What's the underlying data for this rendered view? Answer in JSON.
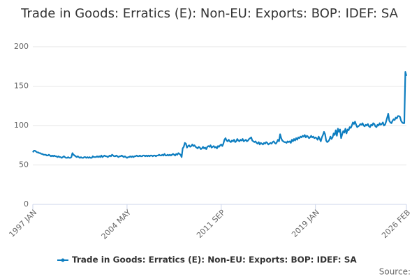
{
  "chart_data": {
    "type": "line",
    "title": "Trade in Goods: Erratics (E): Non-EU: Exports: BOP: IDEF: SA",
    "source": "Source:",
    "categories": [
      "1997 JAN",
      null,
      null,
      null,
      null,
      null,
      null,
      null,
      null,
      null,
      null,
      null,
      null,
      null,
      null,
      null,
      null,
      null,
      null,
      null,
      null,
      null,
      null,
      null,
      null,
      null,
      null,
      null,
      null,
      null,
      null,
      null,
      null,
      null,
      null,
      null,
      null,
      null,
      null,
      null,
      null,
      null,
      null,
      null,
      null,
      null,
      null,
      null,
      null,
      null,
      null,
      null,
      null,
      null,
      null,
      null,
      null,
      null,
      null,
      null,
      null,
      null,
      null,
      null,
      null,
      null,
      null,
      null,
      null,
      null,
      null,
      null,
      null,
      null,
      null,
      null,
      null,
      null,
      null,
      null,
      null,
      null,
      null,
      null,
      null,
      null,
      null,
      null,
      "2004 MAY",
      null,
      null,
      null,
      null,
      null,
      null,
      null,
      null,
      null,
      null,
      null,
      null,
      null,
      null,
      null,
      null,
      null,
      null,
      null,
      null,
      null,
      null,
      null,
      null,
      null,
      null,
      null,
      null,
      null,
      null,
      null,
      null,
      null,
      null,
      null,
      null,
      null,
      null,
      null,
      null,
      null,
      null,
      null,
      null,
      null,
      null,
      null,
      null,
      null,
      null,
      null,
      null,
      null,
      null,
      null,
      null,
      null,
      null,
      null,
      null,
      null,
      null,
      null,
      null,
      null,
      null,
      null,
      null,
      null,
      null,
      null,
      null,
      null,
      null,
      null,
      null,
      null,
      null,
      null,
      null,
      null,
      null,
      null,
      null,
      null,
      null,
      null,
      "2011 SEP",
      null,
      null,
      null,
      null,
      null,
      null,
      null,
      null,
      null,
      null,
      null,
      null,
      null,
      null,
      null,
      null,
      null,
      null,
      null,
      null,
      null,
      null,
      null,
      null,
      null,
      null,
      null,
      null,
      null,
      null,
      null,
      null,
      null,
      null,
      null,
      null,
      null,
      null,
      null,
      null,
      null,
      null,
      null,
      null,
      null,
      null,
      null,
      null,
      null,
      null,
      null,
      null,
      null,
      null,
      null,
      null,
      null,
      null,
      null,
      null,
      null,
      null,
      null,
      null,
      null,
      null,
      null,
      null,
      null,
      null,
      null,
      null,
      null,
      null,
      null,
      null,
      null,
      null,
      null,
      null,
      null,
      null,
      null,
      null,
      null,
      null,
      null,
      "2019 JAN",
      null,
      null,
      null,
      null,
      null,
      null,
      null,
      null,
      null,
      null,
      null,
      null,
      null,
      null,
      null,
      null,
      null,
      null,
      null,
      null,
      null,
      null,
      null,
      null,
      null,
      null,
      null,
      null,
      null,
      null,
      null,
      null,
      null,
      null,
      null,
      null,
      null,
      null,
      null,
      null,
      null,
      null,
      null,
      null,
      null,
      null,
      null,
      null,
      null,
      null,
      null,
      null,
      null,
      null,
      null,
      null,
      null,
      null,
      null,
      null,
      null,
      null,
      null,
      null,
      null,
      null,
      null,
      null,
      null,
      null,
      null,
      null,
      null,
      null,
      null,
      null,
      null,
      null,
      null,
      null,
      null,
      null,
      null,
      null,
      "2026 FEB"
    ],
    "series": [
      {
        "name": "Trade in Goods: Erratics (E): Non-EU: Exports: BOP: IDEF: SA",
        "color": "#0e7ec0",
        "values": [
          66,
          68,
          68,
          67,
          66,
          66,
          65,
          65,
          64,
          64,
          63,
          63,
          63,
          62,
          62,
          63,
          62,
          61,
          62,
          61,
          62,
          61,
          61,
          60,
          61,
          60,
          60,
          59,
          60,
          61,
          60,
          59,
          59,
          60,
          59,
          59,
          60,
          65,
          63,
          62,
          61,
          60,
          61,
          60,
          59,
          60,
          59,
          59,
          60,
          60,
          59,
          60,
          59,
          60,
          59,
          59,
          61,
          60,
          60,
          60,
          61,
          60,
          61,
          60,
          62,
          60,
          61,
          62,
          61,
          61,
          60,
          61,
          62,
          61,
          63,
          62,
          61,
          61,
          62,
          61,
          60,
          61,
          61,
          62,
          61,
          60,
          61,
          60,
          59,
          60,
          60,
          61,
          60,
          61,
          60,
          61,
          61,
          62,
          61,
          61,
          62,
          61,
          61,
          62,
          62,
          61,
          62,
          61,
          62,
          61,
          62,
          62,
          61,
          62,
          62,
          61,
          62,
          62,
          63,
          62,
          62,
          63,
          62,
          64,
          62,
          62,
          63,
          62,
          63,
          62,
          63,
          64,
          63,
          62,
          64,
          63,
          65,
          64,
          63,
          60,
          71,
          73,
          78,
          77,
          72,
          74,
          75,
          73,
          74,
          76,
          74,
          75,
          73,
          72,
          71,
          73,
          72,
          70,
          71,
          73,
          71,
          72,
          70,
          73,
          74,
          73,
          75,
          72,
          73,
          74,
          72,
          73,
          71,
          74,
          73,
          75,
          76,
          74,
          77,
          82,
          84,
          81,
          80,
          82,
          80,
          79,
          81,
          80,
          82,
          79,
          80,
          83,
          81,
          80,
          82,
          81,
          83,
          80,
          81,
          82,
          80,
          81,
          83,
          84,
          85,
          81,
          80,
          79,
          80,
          78,
          77,
          79,
          76,
          78,
          77,
          76,
          78,
          77,
          79,
          78,
          76,
          77,
          78,
          77,
          79,
          80,
          78,
          77,
          79,
          82,
          80,
          89,
          84,
          81,
          80,
          79,
          79,
          78,
          80,
          79,
          80,
          78,
          82,
          80,
          83,
          81,
          84,
          82,
          85,
          84,
          86,
          85,
          87,
          86,
          88,
          85,
          87,
          86,
          84,
          85,
          87,
          85,
          86,
          84,
          85,
          84,
          82,
          86,
          83,
          80,
          85,
          88,
          92,
          89,
          81,
          79,
          80,
          82,
          86,
          83,
          85,
          90,
          88,
          94,
          87,
          96,
          92,
          95,
          84,
          89,
          93,
          91,
          96,
          90,
          95,
          94,
          98,
          97,
          100,
          104,
          102,
          105,
          101,
          98,
          99,
          100,
          102,
          101,
          103,
          100,
          99,
          101,
          100,
          102,
          99,
          98,
          101,
          100,
          103,
          102,
          99,
          98,
          101,
          100,
          103,
          101,
          102,
          104,
          100,
          101,
          105,
          110,
          115,
          106,
          104,
          103,
          106,
          108,
          107,
          110,
          109,
          112,
          112,
          111,
          106,
          104,
          103,
          103,
          168,
          163
        ]
      }
    ],
    "ylim": [
      0,
      200
    ],
    "yticks": [
      0,
      50,
      100,
      150,
      200
    ],
    "grid": true,
    "legend": "bottom"
  }
}
